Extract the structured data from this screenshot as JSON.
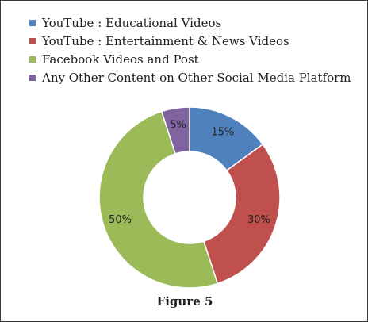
{
  "chart_data": {
    "type": "pie",
    "donut": true,
    "caption": "Figure 5",
    "legend_position": "top",
    "slices": [
      {
        "label": "YouTube : Educational Videos",
        "value": 15,
        "value_label": "15%",
        "color": "#4f81bd"
      },
      {
        "label": "YouTube : Entertainment & News Videos",
        "value": 30,
        "value_label": "30%",
        "color": "#c0504d"
      },
      {
        "label": "Facebook Videos and Post",
        "value": 50,
        "value_label": "50%",
        "color": "#9bbb59"
      },
      {
        "label": "Any Other Content on Other Social Media Platform",
        "value": 5,
        "value_label": "5%",
        "color": "#8064a2"
      }
    ]
  }
}
